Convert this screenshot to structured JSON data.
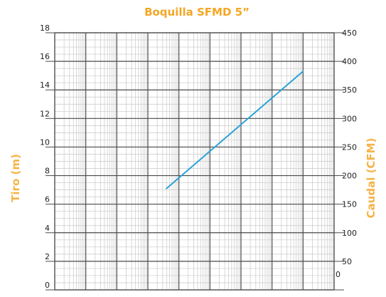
{
  "chart_data": {
    "type": "line",
    "title": "Boquilla SFMD 5”",
    "ylabel": "Tiro (m)",
    "y2label": "Caudal (CFM)",
    "xlabel": "",
    "ylim": [
      0,
      18
    ],
    "yticks": [
      0,
      2,
      4,
      6,
      8,
      10,
      12,
      14,
      16,
      18
    ],
    "y2lim": [
      0,
      450
    ],
    "y2ticks": [
      0,
      50,
      100,
      150,
      200,
      250,
      300,
      350,
      400,
      450
    ],
    "grid": true,
    "series": [
      {
        "values": [
          [
            180,
            7.1
          ],
          [
            400,
            15.3
          ]
        ]
      }
    ]
  },
  "colors": {
    "title": "#f5a623",
    "axis_titles": "#f5b347",
    "line": "#2aa3d8",
    "grid_major": "#4a4a4a",
    "grid_minor": "#c8c8c8"
  }
}
